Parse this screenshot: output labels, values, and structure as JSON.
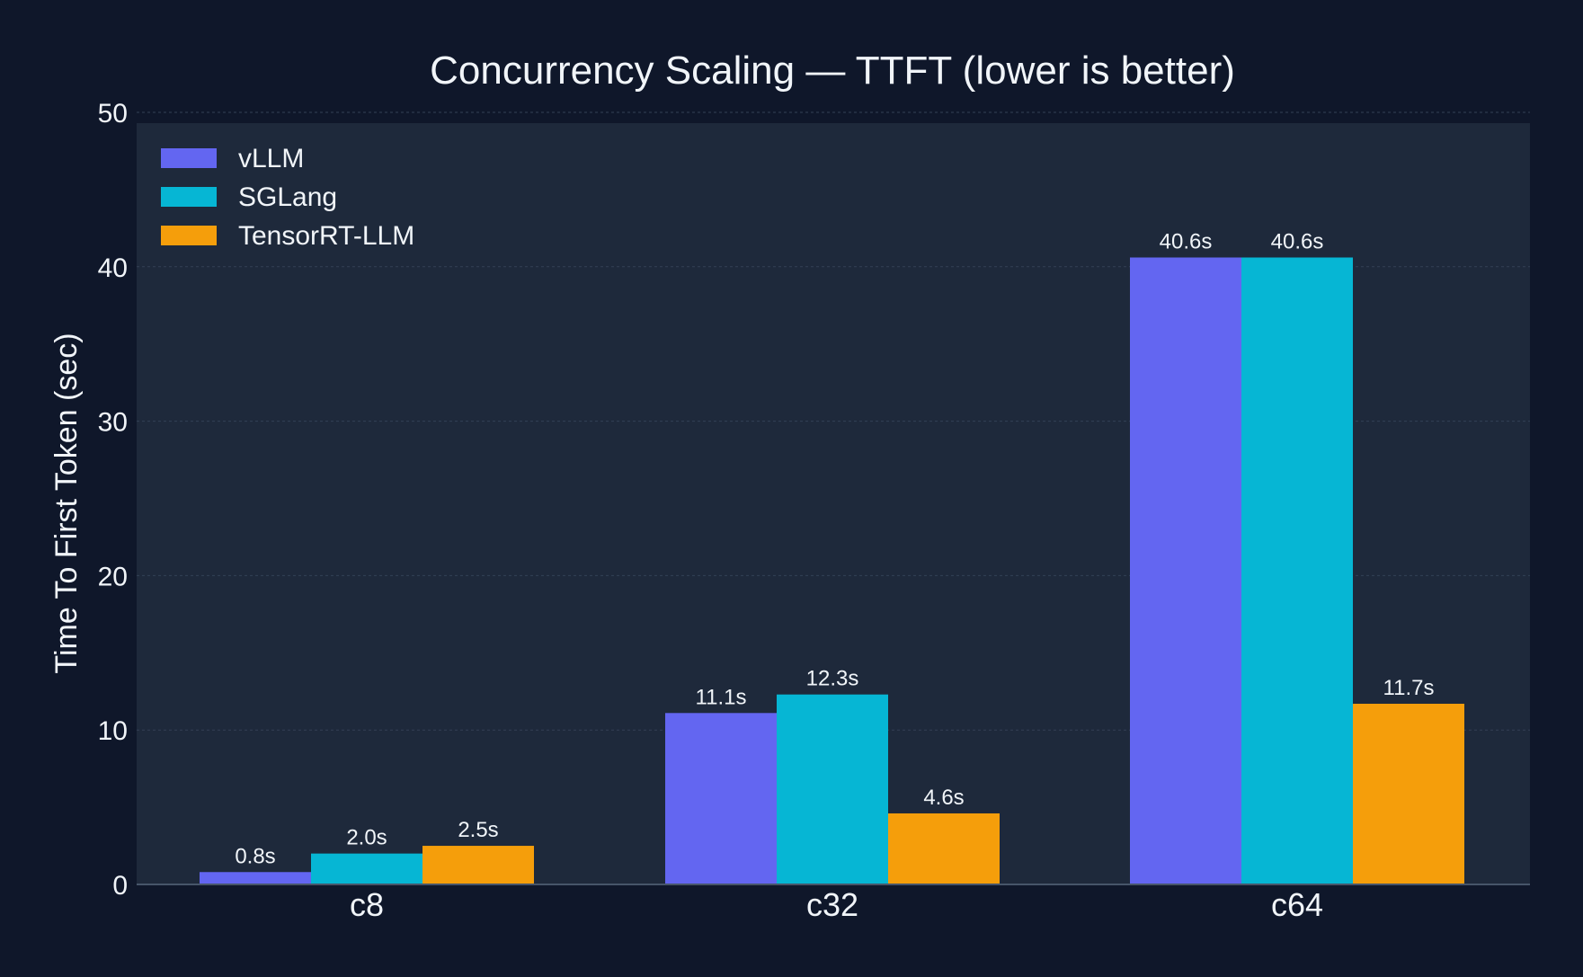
{
  "chart_data": {
    "type": "bar",
    "title": "Concurrency Scaling — TTFT (lower is better)",
    "xlabel": "",
    "ylabel": "Time To First Token (sec)",
    "categories": [
      "c8",
      "c32",
      "c64"
    ],
    "ylim": [
      0,
      50
    ],
    "yticks": [
      0,
      10,
      20,
      30,
      40,
      50
    ],
    "grid": true,
    "legend_position": "top-left",
    "series": [
      {
        "name": "vLLM",
        "color": "#6366f1",
        "values": [
          0.8,
          11.1,
          40.6
        ],
        "labels": [
          "0.8s",
          "11.1s",
          "40.6s"
        ]
      },
      {
        "name": "SGLang",
        "color": "#06b6d4",
        "values": [
          2.0,
          12.3,
          40.6
        ],
        "labels": [
          "2.0s",
          "12.3s",
          "40.6s"
        ]
      },
      {
        "name": "TensorRT-LLM",
        "color": "#f59e0b",
        "values": [
          2.5,
          4.6,
          11.7
        ],
        "labels": [
          "2.5s",
          "4.6s",
          "11.7s"
        ]
      }
    ]
  }
}
